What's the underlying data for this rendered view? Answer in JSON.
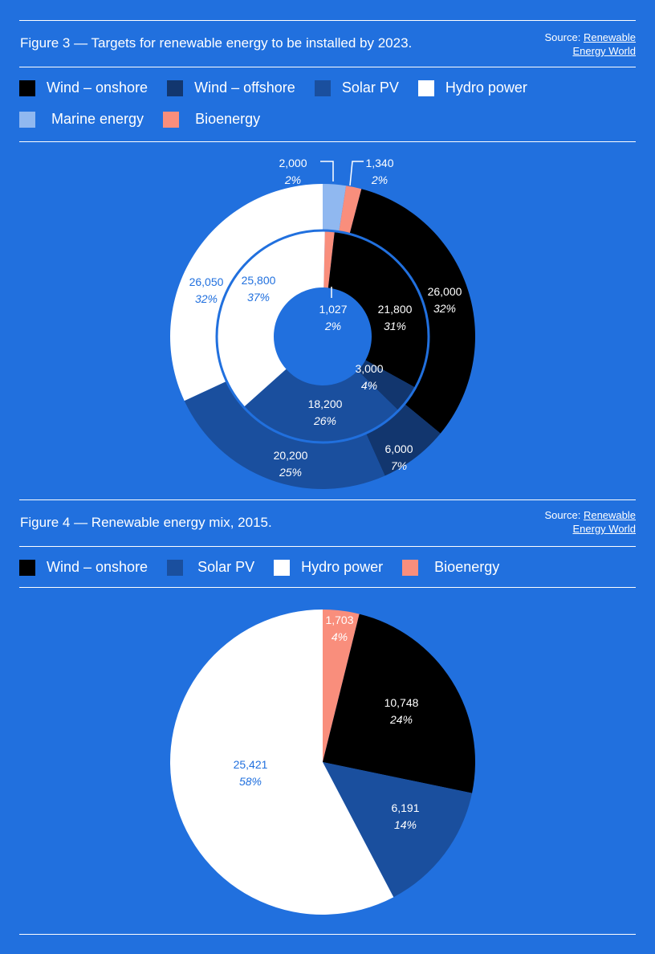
{
  "colors": {
    "background": "#2170de",
    "wind_onshore": "#000000",
    "wind_offshore": "#12366e",
    "solar_pv": "#1a4f9e",
    "hydro": "#ffffff",
    "marine": "#90b8f0",
    "bioenergy": "#f98e7c"
  },
  "figure3": {
    "title": "Figure 3 — Targets for renewable energy to be installed by 2023.",
    "source_label": "Source:",
    "source_link_1": "Renewable",
    "source_link_2": "Energy World",
    "legend": [
      {
        "label": "Wind – onshore",
        "color": "#000000"
      },
      {
        "label": "Wind – offshore",
        "color": "#12366e"
      },
      {
        "label": "Solar PV",
        "color": "#1a4f9e"
      },
      {
        "label": "Hydro power",
        "color": "#ffffff"
      },
      {
        "label": "Marine energy",
        "color": "#90b8f0"
      },
      {
        "label": "Bioenergy",
        "color": "#f98e7c"
      }
    ]
  },
  "figure4": {
    "title": "Figure 4 — Renewable energy mix, 2015.",
    "source_label": "Source:",
    "source_link_1": "Renewable",
    "source_link_2": "Energy World",
    "legend": [
      {
        "label": "Wind – onshore",
        "color": "#000000"
      },
      {
        "label": "Solar PV",
        "color": "#1a4f9e"
      },
      {
        "label": "Hydro power",
        "color": "#ffffff"
      },
      {
        "label": "Bioenergy",
        "color": "#f98e7c"
      }
    ]
  },
  "chart_data": [
    {
      "type": "pie",
      "variant": "nested-donut",
      "title": "Figure 3 — Targets for renewable energy to be installed by 2023.",
      "series": [
        {
          "name": "outer",
          "slices": [
            {
              "category": "Marine energy",
              "value": 2000,
              "value_label": "2,000",
              "percent_label": "2%",
              "color": "#90b8f0"
            },
            {
              "category": "Bioenergy",
              "value": 1340,
              "value_label": "1,340",
              "percent_label": "2%",
              "color": "#f98e7c"
            },
            {
              "category": "Wind – onshore",
              "value": 26000,
              "value_label": "26,000",
              "percent_label": "32%",
              "color": "#000000"
            },
            {
              "category": "Wind – offshore",
              "value": 6000,
              "value_label": "6,000",
              "percent_label": "7%",
              "color": "#12366e"
            },
            {
              "category": "Solar PV",
              "value": 20200,
              "value_label": "20,200",
              "percent_label": "25%",
              "color": "#1a4f9e"
            },
            {
              "category": "Hydro power",
              "value": 26050,
              "value_label": "26,050",
              "percent_label": "32%",
              "color": "#ffffff"
            }
          ]
        },
        {
          "name": "inner",
          "slices": [
            {
              "category": "Bioenergy",
              "value": 1027,
              "value_label": "1,027",
              "percent_label": "2%",
              "color": "#f98e7c"
            },
            {
              "category": "Wind – onshore",
              "value": 21800,
              "value_label": "21,800",
              "percent_label": "31%",
              "color": "#000000"
            },
            {
              "category": "Wind – offshore",
              "value": 3000,
              "value_label": "3,000",
              "percent_label": "4%",
              "color": "#12366e"
            },
            {
              "category": "Solar PV",
              "value": 18200,
              "value_label": "18,200",
              "percent_label": "26%",
              "color": "#1a4f9e"
            },
            {
              "category": "Hydro power",
              "value": 25800,
              "value_label": "25,800",
              "percent_label": "37%",
              "color": "#ffffff"
            }
          ]
        }
      ]
    },
    {
      "type": "pie",
      "title": "Figure 4 — Renewable energy mix, 2015.",
      "slices": [
        {
          "category": "Bioenergy",
          "value": 1703,
          "value_label": "1,703",
          "percent_label": "4%",
          "color": "#f98e7c"
        },
        {
          "category": "Wind – onshore",
          "value": 10748,
          "value_label": "10,748",
          "percent_label": "24%",
          "color": "#000000"
        },
        {
          "category": "Solar PV",
          "value": 6191,
          "value_label": "6,191",
          "percent_label": "14%",
          "color": "#1a4f9e"
        },
        {
          "category": "Hydro power",
          "value": 25421,
          "value_label": "25,421",
          "percent_label": "58%",
          "color": "#ffffff"
        }
      ]
    }
  ]
}
